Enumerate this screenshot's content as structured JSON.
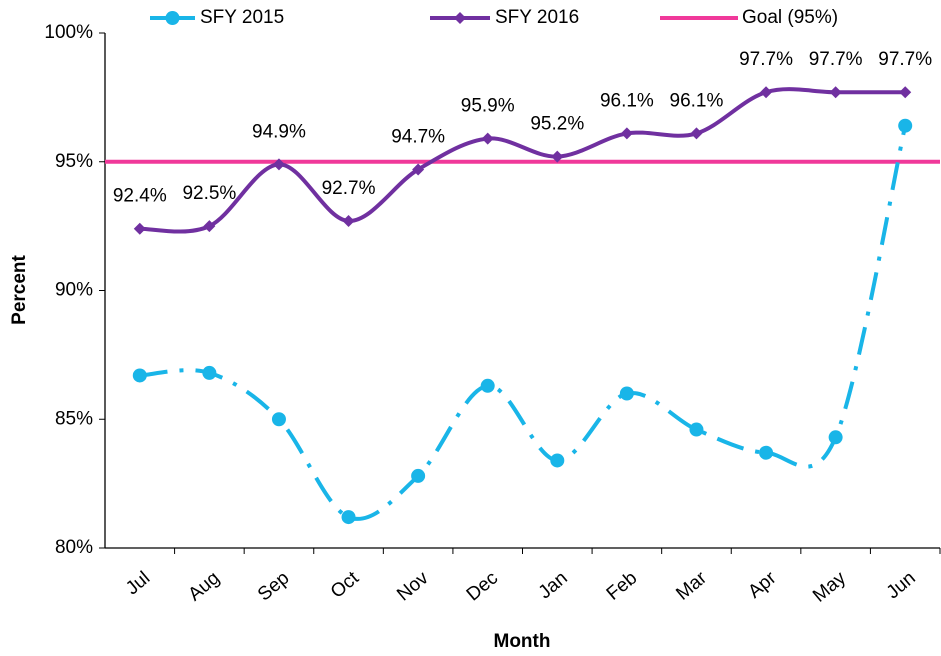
{
  "chart_data": {
    "type": "line",
    "x_label": "Month",
    "y_label": "Percent",
    "categories": [
      "Jul",
      "Aug",
      "Sep",
      "Oct",
      "Nov",
      "Dec",
      "Jan",
      "Feb",
      "Mar",
      "Apr",
      "May",
      "Jun"
    ],
    "series": [
      {
        "name": "SFY 2015",
        "color": "#19b5e8",
        "dashed": true,
        "values": [
          86.7,
          86.8,
          85.0,
          81.2,
          82.8,
          86.3,
          83.4,
          86.0,
          84.6,
          83.7,
          84.3,
          96.4
        ]
      },
      {
        "name": "SFY 2016",
        "color": "#7030a0",
        "dashed": false,
        "values": [
          92.4,
          92.5,
          94.9,
          92.7,
          94.7,
          95.9,
          95.2,
          96.1,
          96.1,
          97.7,
          97.7,
          97.7
        ],
        "value_labels": [
          "92.4%",
          "92.5%",
          "94.9%",
          "92.7%",
          "94.7%",
          "95.9%",
          "95.2%",
          "96.1%",
          "96.1%",
          "97.7%",
          "97.7%",
          "97.7%"
        ]
      }
    ],
    "goal": {
      "name": "Goal (95%)",
      "value": 95,
      "color": "#f0399a"
    },
    "ylim": [
      80,
      100
    ],
    "yticks": [
      {
        "value": 80,
        "label": "80%"
      },
      {
        "value": 85,
        "label": "85%"
      },
      {
        "value": 90,
        "label": "90%"
      },
      {
        "value": 95,
        "label": "95%"
      },
      {
        "value": 100,
        "label": "100%"
      }
    ]
  }
}
